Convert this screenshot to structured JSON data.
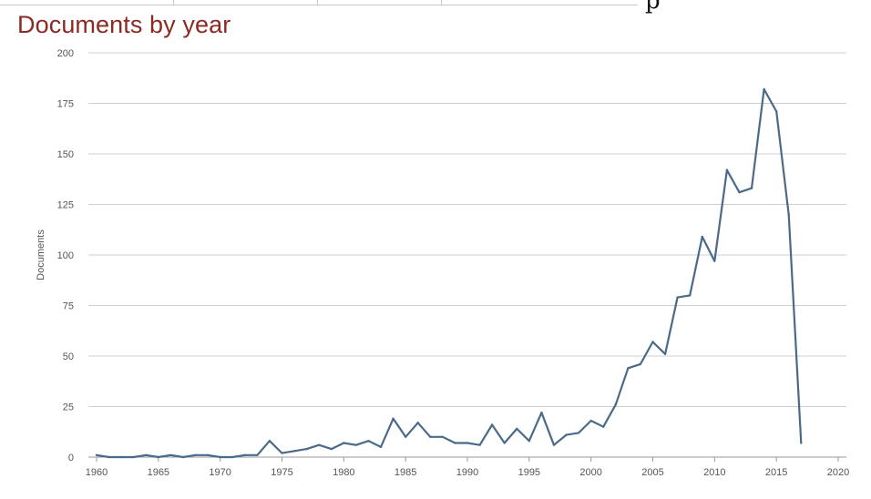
{
  "page": {
    "title": "Documents by year",
    "top_fragment": "p"
  },
  "chart_data": {
    "type": "line",
    "title": "Documents by year",
    "xlabel": "",
    "ylabel": "Documents",
    "xlim": [
      1960,
      2020
    ],
    "ylim": [
      0,
      200
    ],
    "x_ticks": [
      1960,
      1965,
      1970,
      1975,
      1980,
      1985,
      1990,
      1995,
      2000,
      2005,
      2010,
      2015,
      2020
    ],
    "y_ticks": [
      0,
      25,
      50,
      75,
      100,
      125,
      150,
      175,
      200
    ],
    "grid": "horizontal",
    "legend": "none",
    "line_color": "#4a6a8a",
    "series": [
      {
        "x": [
          1960,
          1961,
          1962,
          1963,
          1964,
          1965,
          1966,
          1967,
          1968,
          1969,
          1970,
          1971,
          1972,
          1973,
          1974,
          1975,
          1976,
          1977,
          1978,
          1979,
          1980,
          1981,
          1982,
          1983,
          1984,
          1985,
          1986,
          1987,
          1988,
          1989,
          1990,
          1991,
          1992,
          1993,
          1994,
          1995,
          1996,
          1997,
          1998,
          1999,
          2000,
          2001,
          2002,
          2003,
          2004,
          2005,
          2006,
          2007,
          2008,
          2009,
          2010,
          2011,
          2012,
          2013,
          2014,
          2015,
          2016,
          2017
        ],
        "values": [
          1,
          0,
          0,
          0,
          1,
          0,
          1,
          0,
          1,
          1,
          0,
          0,
          1,
          1,
          8,
          2,
          3,
          4,
          6,
          4,
          7,
          6,
          8,
          5,
          19,
          10,
          17,
          10,
          10,
          7,
          7,
          6,
          16,
          7,
          14,
          8,
          22,
          6,
          11,
          12,
          18,
          15,
          26,
          44,
          46,
          57,
          51,
          79,
          80,
          109,
          97,
          142,
          131,
          133,
          182,
          171,
          120,
          7
        ]
      }
    ]
  }
}
